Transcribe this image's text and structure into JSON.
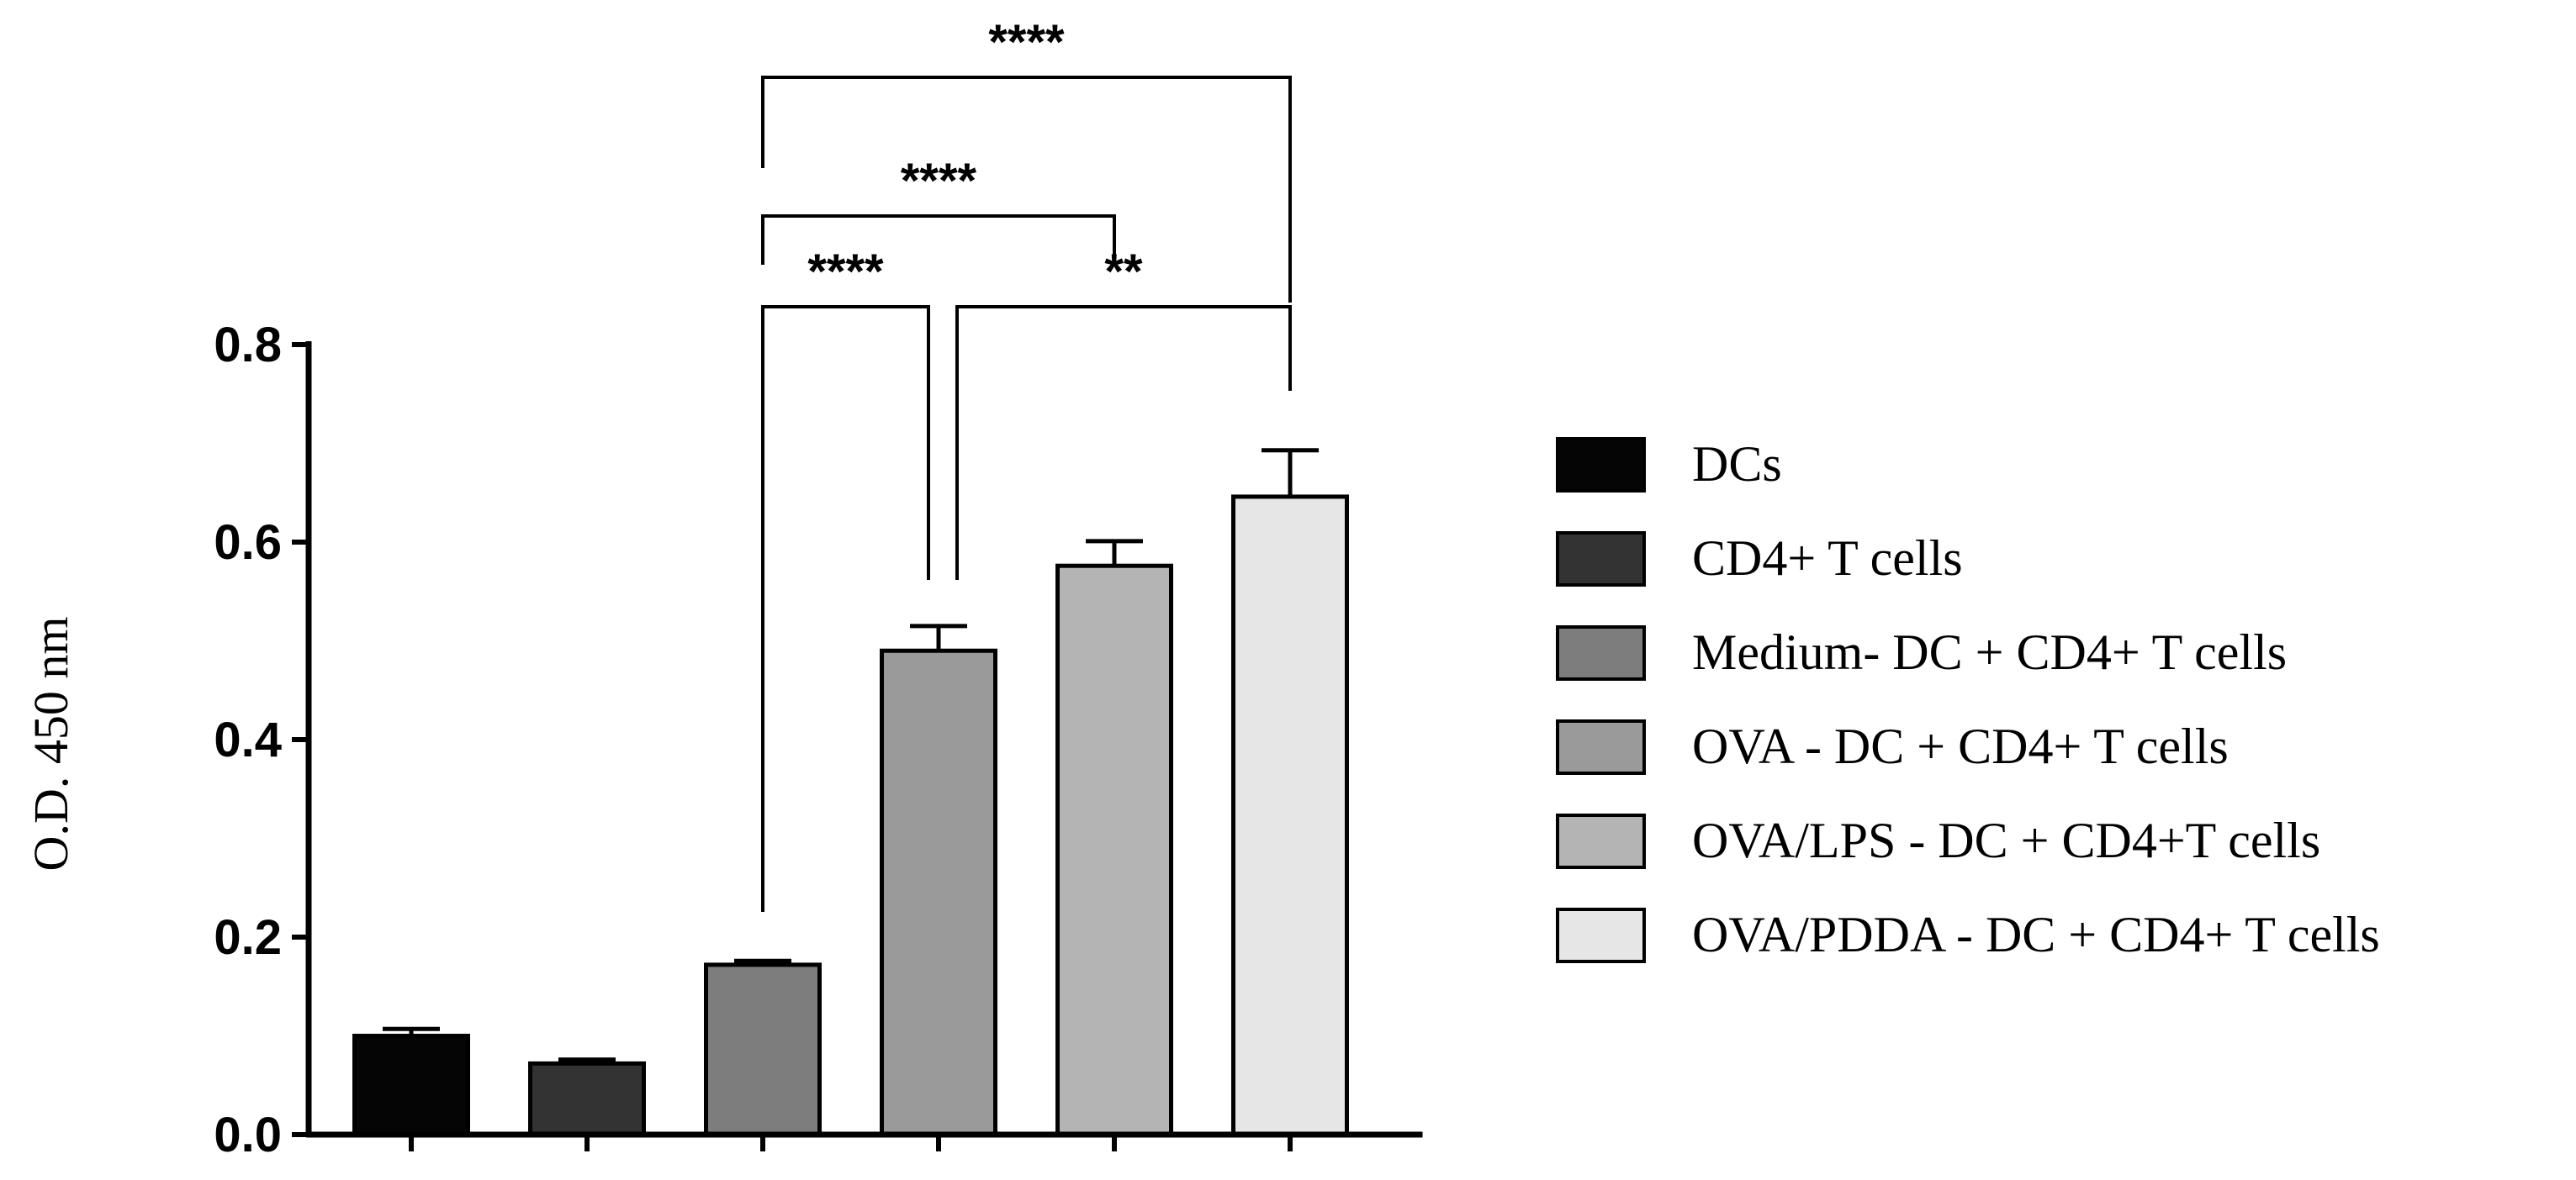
{
  "chart_data": {
    "type": "bar",
    "title": "",
    "xlabel": "",
    "ylabel": "O.D. 450 nm",
    "ylim": [
      0,
      0.8
    ],
    "yticks": [
      "0.0",
      "0.2",
      "0.4",
      "0.6",
      "0.8"
    ],
    "grid": false,
    "legend_position": "right",
    "categories": [
      "DCs",
      "CD4+ T cells",
      "Medium- DC + CD4+ T cells",
      "OVA - DC + CD4+ T cells",
      "OVA/LPS - DC + CD4+T cells",
      "OVA/PDDA - DC + CD4+ T cells"
    ],
    "values": [
      0.1,
      0.072,
      0.172,
      0.49,
      0.576,
      0.646
    ],
    "errors": [
      0.007,
      0.004,
      0.004,
      0.025,
      0.025,
      0.047
    ],
    "colors": [
      "#050505",
      "#333333",
      "#7d7d7d",
      "#9a9a9a",
      "#b4b4b4",
      "#e6e6e6"
    ],
    "significance": [
      {
        "from": 2,
        "to": 3,
        "label": "****"
      },
      {
        "from": 3,
        "to": 5,
        "label": "**"
      },
      {
        "from": 2,
        "to": 4,
        "label": "****"
      },
      {
        "from": 2,
        "to": 5,
        "label": "****"
      }
    ]
  }
}
